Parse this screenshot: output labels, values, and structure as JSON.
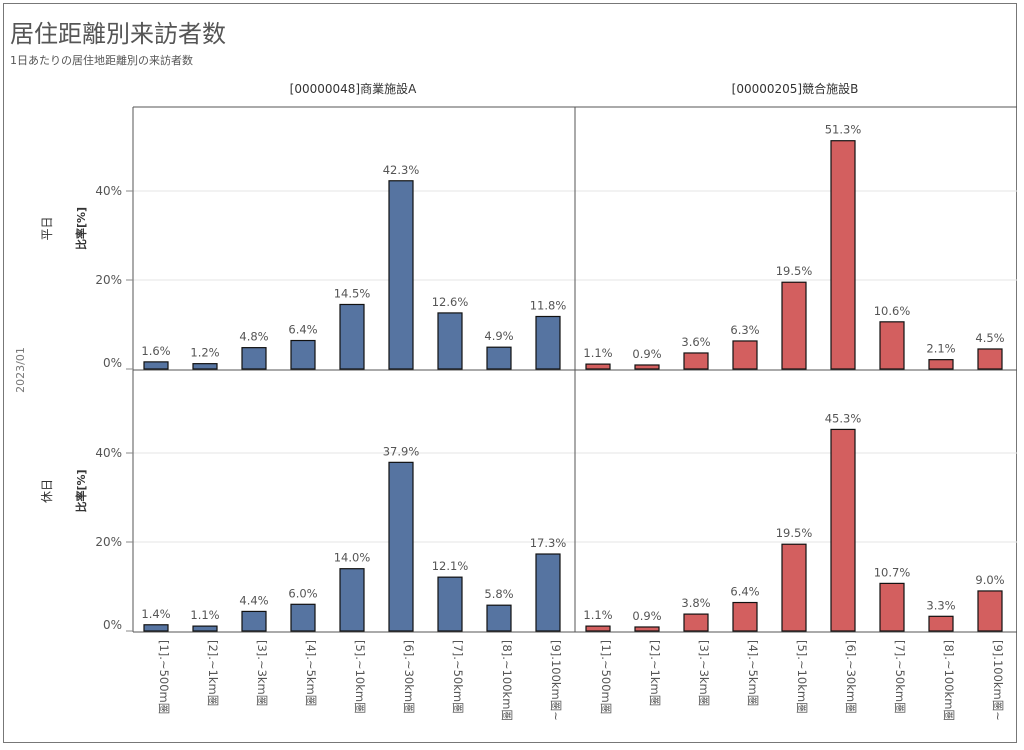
{
  "title": "居住距離別来訪者数",
  "subtitle": "1日あたりの居住地距離別の来訪者数",
  "date_label": "2023/01",
  "columns": [
    {
      "label": "[00000048]商業施設A",
      "color": "#5674a1"
    },
    {
      "label": "[00000205]競合施設B",
      "color": "#d35f5f"
    }
  ],
  "rows": [
    {
      "label": "平日",
      "ylabel": "比率[%]"
    },
    {
      "label": "休日",
      "ylabel": "比率[%]"
    }
  ],
  "chart_data": {
    "type": "bar",
    "categories": [
      "[1].~500m圏",
      "[2].~1km圏",
      "[3].~3km圏",
      "[4].~5km圏",
      "[5].~10km圏",
      "[6].~30km圏",
      "[7].~50km圏",
      "[8].~100km圏",
      "[9].100km圏~"
    ],
    "ylim": [
      0,
      55
    ],
    "yticks": [
      "0%",
      "20%",
      "40%"
    ],
    "value_format": "percent",
    "panels": [
      {
        "facility": "[00000048]商業施設A",
        "daytype": "平日",
        "values": [
          1.6,
          1.2,
          4.8,
          6.4,
          14.5,
          42.3,
          12.6,
          4.9,
          11.8
        ]
      },
      {
        "facility": "[00000205]競合施設B",
        "daytype": "平日",
        "values": [
          1.1,
          0.9,
          3.6,
          6.3,
          19.5,
          51.3,
          10.6,
          2.1,
          4.5
        ]
      },
      {
        "facility": "[00000048]商業施設A",
        "daytype": "休日",
        "values": [
          1.4,
          1.1,
          4.4,
          6.0,
          14.0,
          37.9,
          12.1,
          5.8,
          17.3
        ]
      },
      {
        "facility": "[00000205]競合施設B",
        "daytype": "休日",
        "values": [
          1.1,
          0.9,
          3.8,
          6.4,
          19.5,
          45.3,
          10.7,
          3.3,
          9.0
        ]
      }
    ]
  }
}
